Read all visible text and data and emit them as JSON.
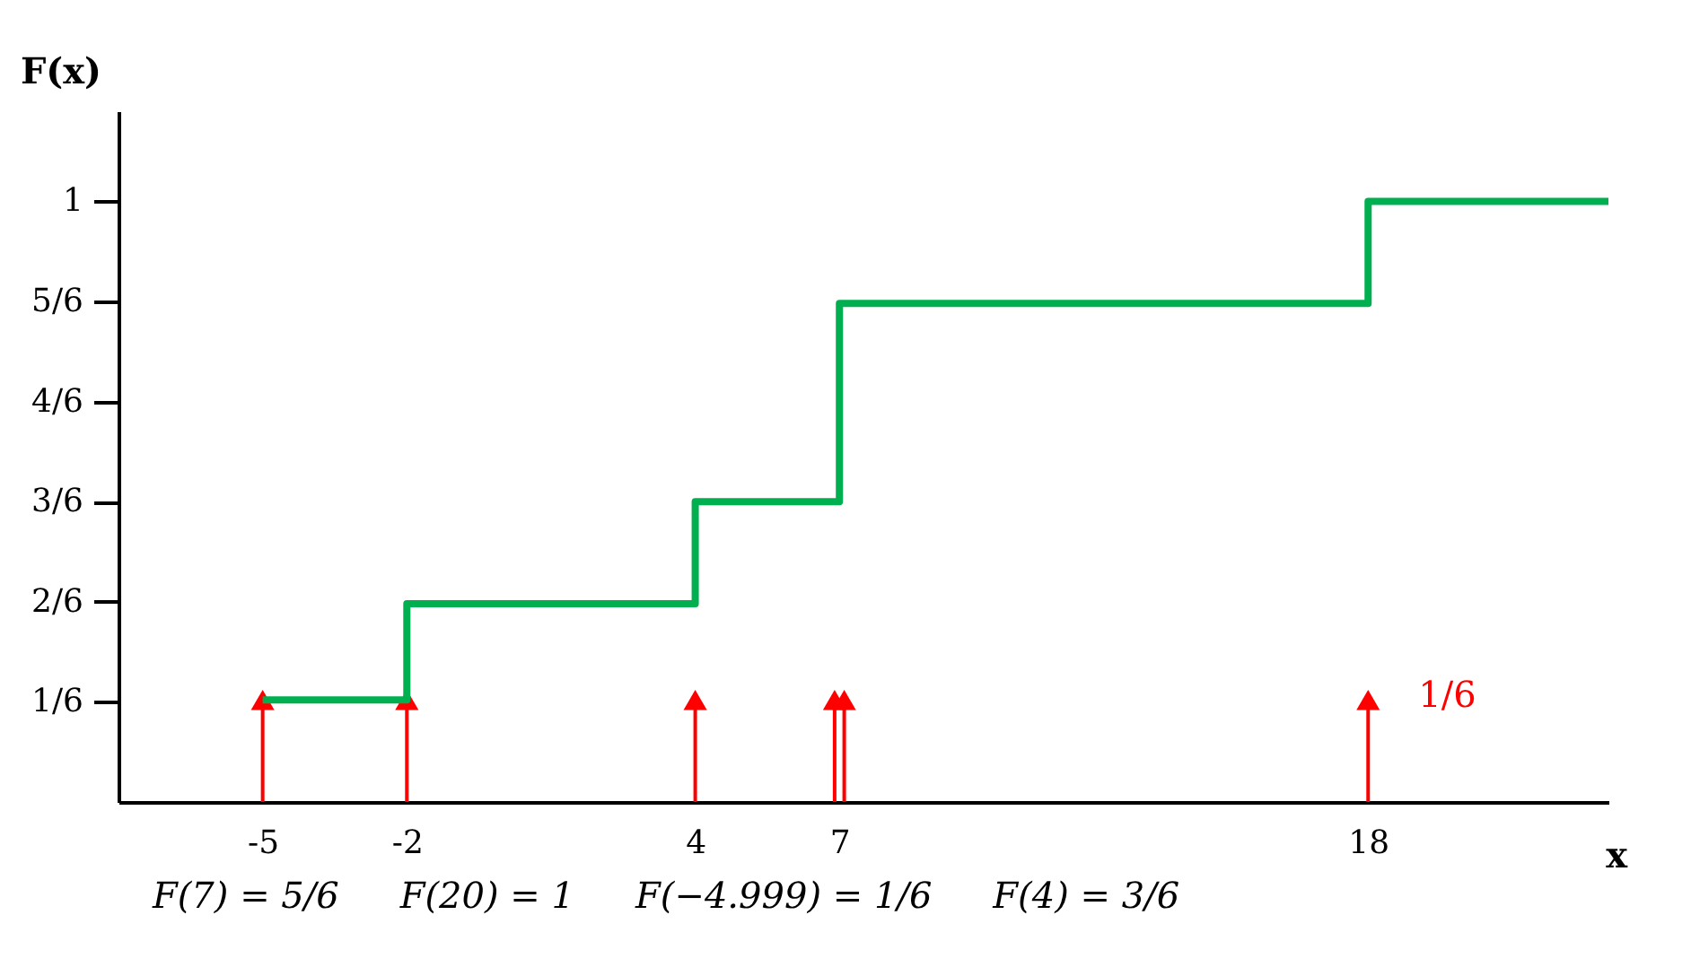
{
  "chart_data": {
    "type": "step",
    "xlabel": "x",
    "ylabel": "F(x)",
    "xlim": [
      -8,
      23
    ],
    "xticks": [
      -5,
      -2,
      4,
      7,
      18
    ],
    "ylim": [
      0,
      1.15
    ],
    "yticks": [
      {
        "value": 0.1667,
        "label": "1/6"
      },
      {
        "value": 0.3333,
        "label": "2/6"
      },
      {
        "value": 0.5,
        "label": "3/6"
      },
      {
        "value": 0.6667,
        "label": "4/6"
      },
      {
        "value": 0.8333,
        "label": "5/6"
      },
      1
    ],
    "series": [
      {
        "color": "#00b050",
        "x": [
          -5,
          -2,
          4,
          7,
          18,
          23
        ],
        "values": [
          0.17,
          0.33,
          0.5,
          0.83,
          1,
          1
        ]
      },
      {
        "type": "lollipop",
        "marker": "triangle",
        "color": "#ff0000",
        "x": [
          -5,
          -2,
          4,
          6.9,
          7.1,
          18
        ],
        "values": [
          0.17,
          0.17,
          0.17,
          0.17,
          0.17,
          0.17
        ]
      }
    ],
    "annotations": [
      {
        "text": "1/6",
        "x": 18,
        "y": 0.17
      },
      "F(7) = 5/6",
      "F(20) = 1",
      "F(−4.999) = 1/6",
      "F(4) = 3/6"
    ]
  }
}
